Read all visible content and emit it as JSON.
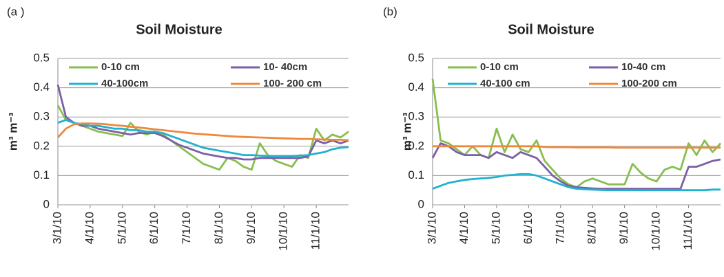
{
  "chart_data": [
    {
      "type": "line",
      "panel_label": "(a )",
      "title": "Soil Moisture",
      "y_label": "m³ m⁻³",
      "categories": [
        "3/1/10",
        null,
        null,
        null,
        "4/1/10",
        null,
        null,
        null,
        "5/1/10",
        null,
        null,
        null,
        "6/1/10",
        null,
        null,
        null,
        "7/1/10",
        null,
        null,
        null,
        "8/1/10",
        null,
        null,
        null,
        "9/1/10",
        null,
        null,
        null,
        "10/1/10",
        null,
        null,
        null,
        "11/1/10",
        null,
        null,
        null,
        null
      ],
      "ylim": [
        0,
        0.5
      ],
      "yticks": [
        0,
        0.1,
        0.2,
        0.3,
        0.4,
        0.5
      ],
      "grid": true,
      "series": [
        {
          "name": "0-10 cm",
          "color": "#86bf4e",
          "values": [
            0.34,
            0.29,
            0.28,
            0.27,
            0.26,
            0.25,
            0.245,
            0.24,
            0.235,
            0.28,
            0.25,
            0.24,
            0.25,
            0.24,
            0.22,
            0.2,
            0.18,
            0.16,
            0.14,
            0.13,
            0.12,
            0.16,
            0.15,
            0.13,
            0.12,
            0.21,
            0.17,
            0.15,
            0.14,
            0.13,
            0.17,
            0.16,
            0.26,
            0.22,
            0.24,
            0.23,
            0.25
          ]
        },
        {
          "name": "10- 40cm",
          "color": "#7b5ea7",
          "values": [
            0.41,
            0.3,
            0.28,
            0.27,
            0.27,
            0.26,
            0.255,
            0.25,
            0.245,
            0.24,
            0.245,
            0.245,
            0.245,
            0.235,
            0.22,
            0.205,
            0.195,
            0.185,
            0.175,
            0.17,
            0.165,
            0.16,
            0.16,
            0.155,
            0.155,
            0.16,
            0.16,
            0.16,
            0.16,
            0.16,
            0.16,
            0.165,
            0.22,
            0.21,
            0.22,
            0.21,
            0.22
          ]
        },
        {
          "name": "40-100cm",
          "color": "#1fb2d0",
          "values": [
            0.28,
            0.29,
            0.28,
            0.275,
            0.27,
            0.27,
            0.265,
            0.26,
            0.26,
            0.255,
            0.255,
            0.25,
            0.25,
            0.245,
            0.235,
            0.225,
            0.215,
            0.205,
            0.195,
            0.19,
            0.185,
            0.18,
            0.175,
            0.17,
            0.17,
            0.168,
            0.167,
            0.167,
            0.167,
            0.167,
            0.168,
            0.17,
            0.175,
            0.18,
            0.19,
            0.195,
            0.197
          ]
        },
        {
          "name": "100- 200 cm",
          "color": "#f0883a",
          "values": [
            0.23,
            0.26,
            0.275,
            0.278,
            0.278,
            0.277,
            0.275,
            0.272,
            0.27,
            0.267,
            0.264,
            0.261,
            0.258,
            0.255,
            0.252,
            0.249,
            0.246,
            0.243,
            0.241,
            0.239,
            0.237,
            0.235,
            0.233,
            0.232,
            0.231,
            0.23,
            0.229,
            0.228,
            0.227,
            0.226,
            0.225,
            0.225,
            0.224,
            0.223,
            0.222,
            0.222,
            0.221
          ]
        }
      ]
    },
    {
      "type": "line",
      "panel_label": "(b)",
      "title": "Soil Moisture",
      "y_label": "m³ m⁻³",
      "categories": [
        "3/1/10",
        null,
        null,
        null,
        "4/1/10",
        null,
        null,
        null,
        "5/1/10",
        null,
        null,
        null,
        "6/1/10",
        null,
        null,
        null,
        "7/1/10",
        null,
        null,
        null,
        "8/1/10",
        null,
        null,
        null,
        "9/1/10",
        null,
        null,
        null,
        "10/1/10",
        null,
        null,
        null,
        "11/1/10",
        null,
        null,
        null,
        null
      ],
      "ylim": [
        0,
        0.5
      ],
      "yticks": [
        0,
        0.1,
        0.2,
        0.3,
        0.4,
        0.5
      ],
      "grid": true,
      "series": [
        {
          "name": "0-10 cm",
          "color": "#86bf4e",
          "values": [
            0.43,
            0.22,
            0.21,
            0.19,
            0.17,
            0.2,
            0.17,
            0.16,
            0.26,
            0.18,
            0.24,
            0.19,
            0.18,
            0.22,
            0.15,
            0.12,
            0.09,
            0.07,
            0.06,
            0.08,
            0.09,
            0.08,
            0.07,
            0.07,
            0.07,
            0.14,
            0.11,
            0.09,
            0.08,
            0.12,
            0.13,
            0.12,
            0.21,
            0.17,
            0.22,
            0.18,
            0.21
          ]
        },
        {
          "name": "10-40 cm",
          "color": "#7b5ea7",
          "values": [
            0.16,
            0.21,
            0.2,
            0.18,
            0.17,
            0.17,
            0.17,
            0.16,
            0.18,
            0.17,
            0.16,
            0.18,
            0.17,
            0.16,
            0.13,
            0.1,
            0.08,
            0.065,
            0.06,
            0.058,
            0.056,
            0.055,
            0.055,
            0.055,
            0.055,
            0.055,
            0.055,
            0.055,
            0.055,
            0.055,
            0.055,
            0.055,
            0.13,
            0.13,
            0.14,
            0.15,
            0.155
          ]
        },
        {
          "name": "40-100 cm",
          "color": "#1fb2d0",
          "values": [
            0.055,
            0.065,
            0.075,
            0.08,
            0.085,
            0.088,
            0.09,
            0.092,
            0.095,
            0.1,
            0.102,
            0.105,
            0.105,
            0.1,
            0.09,
            0.08,
            0.07,
            0.06,
            0.055,
            0.053,
            0.052,
            0.051,
            0.05,
            0.05,
            0.05,
            0.05,
            0.05,
            0.05,
            0.05,
            0.05,
            0.05,
            0.05,
            0.05,
            0.05,
            0.05,
            0.052,
            0.052
          ]
        },
        {
          "name": "100-200 cm",
          "color": "#f0883a",
          "values": [
            0.2,
            0.2,
            0.2,
            0.2,
            0.2,
            0.2,
            0.2,
            0.2,
            0.2,
            0.2,
            0.2,
            0.2,
            0.2,
            0.2,
            0.198,
            0.197,
            0.197,
            0.197,
            0.196,
            0.196,
            0.196,
            0.196,
            0.196,
            0.195,
            0.195,
            0.195,
            0.195,
            0.195,
            0.195,
            0.195,
            0.195,
            0.195,
            0.195,
            0.195,
            0.195,
            0.195,
            0.195
          ]
        }
      ]
    }
  ]
}
